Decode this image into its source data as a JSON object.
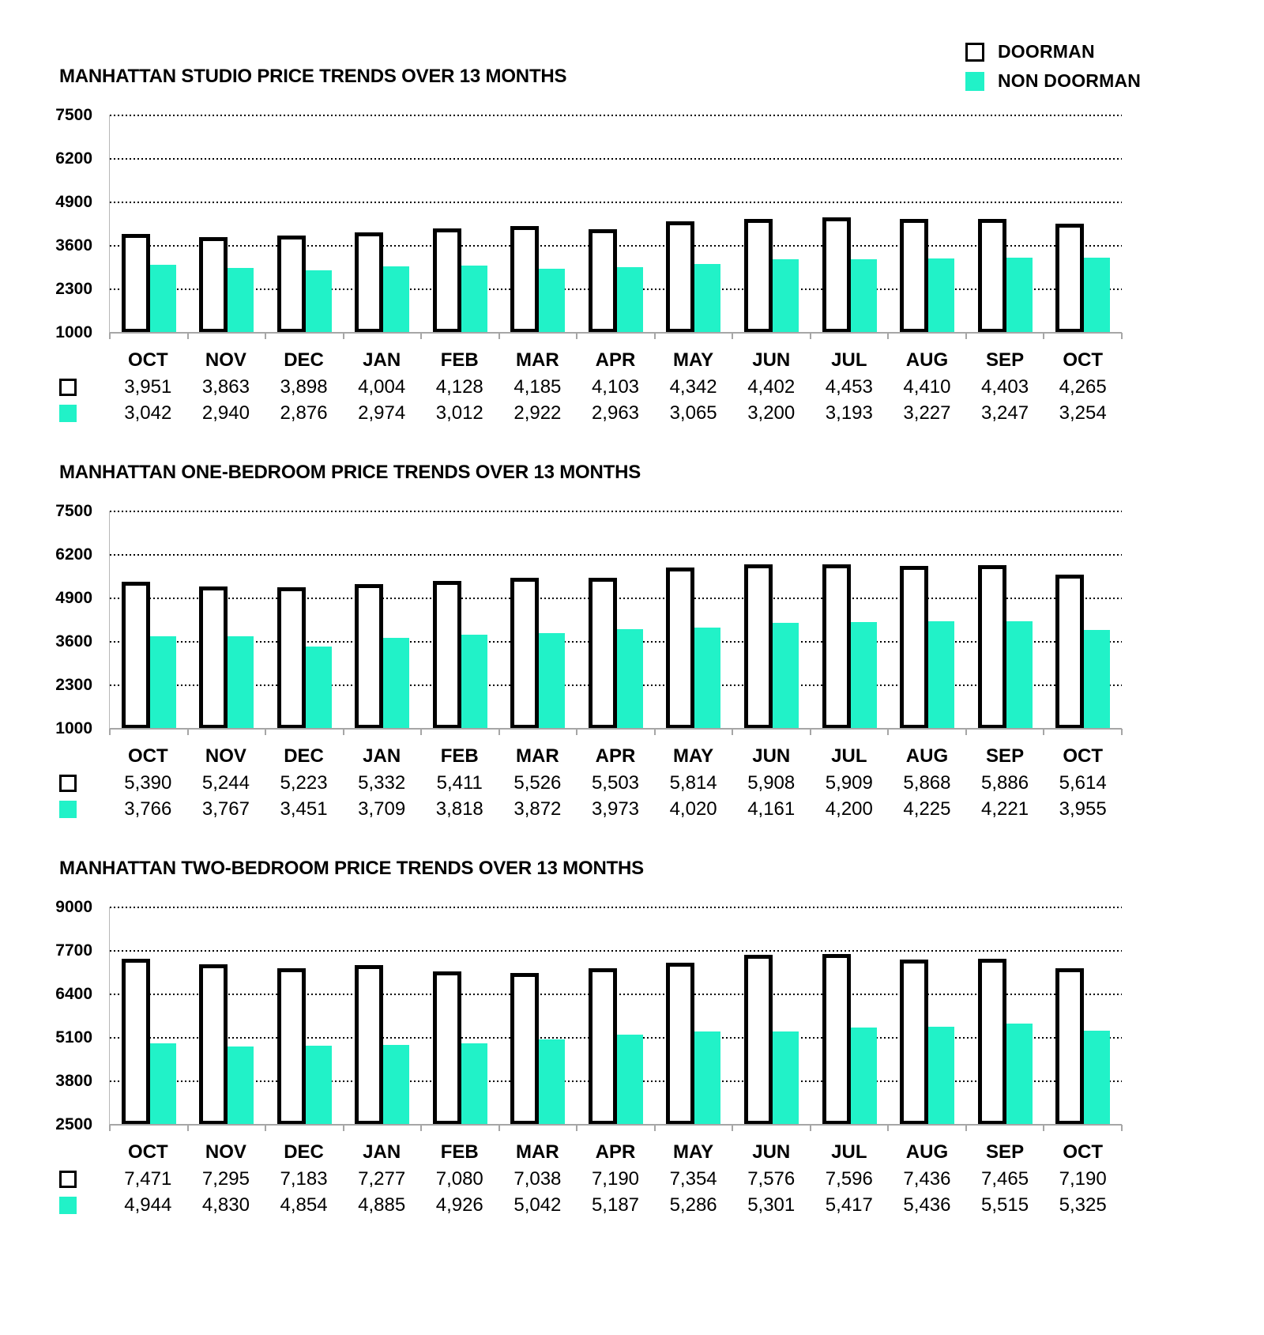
{
  "legend": {
    "items": [
      {
        "id": "doorman",
        "label": "DOORMAN"
      },
      {
        "id": "non_doorman",
        "label": "NON DOORMAN"
      }
    ],
    "position": "top-right"
  },
  "colors": {
    "doorman_fill": "#FFFFFF",
    "doorman_border": "#000000",
    "non_doorman_fill": "#21F2C8",
    "gridline": "#000000",
    "axis": "#A6A6A6"
  },
  "chart_data": [
    {
      "type": "bar",
      "title": "MANHATTAN STUDIO PRICE TRENDS OVER 13 MONTHS",
      "categories": [
        "OCT",
        "NOV",
        "DEC",
        "JAN",
        "FEB",
        "MAR",
        "APR",
        "MAY",
        "JUN",
        "JUL",
        "AUG",
        "SEP",
        "OCT"
      ],
      "y_ticks": [
        7500,
        6200,
        4900,
        3600,
        2300,
        1000
      ],
      "ylim": [
        1000,
        7500
      ],
      "grid": "dotted-horizontal",
      "series": [
        {
          "name": "DOORMAN",
          "values": [
            3951,
            3863,
            3898,
            4004,
            4128,
            4185,
            4103,
            4342,
            4402,
            4453,
            4410,
            4403,
            4265
          ]
        },
        {
          "name": "NON DOORMAN",
          "values": [
            3042,
            2940,
            2876,
            2974,
            3012,
            2922,
            2963,
            3065,
            3200,
            3193,
            3227,
            3247,
            3254
          ]
        }
      ]
    },
    {
      "type": "bar",
      "title": "MANHATTAN ONE-BEDROOM PRICE TRENDS OVER 13 MONTHS",
      "categories": [
        "OCT",
        "NOV",
        "DEC",
        "JAN",
        "FEB",
        "MAR",
        "APR",
        "MAY",
        "JUN",
        "JUL",
        "AUG",
        "SEP",
        "OCT"
      ],
      "y_ticks": [
        7500,
        6200,
        4900,
        3600,
        2300,
        1000
      ],
      "ylim": [
        1000,
        7500
      ],
      "grid": "dotted-horizontal",
      "series": [
        {
          "name": "DOORMAN",
          "values": [
            5390,
            5244,
            5223,
            5332,
            5411,
            5526,
            5503,
            5814,
            5908,
            5909,
            5868,
            5886,
            5614
          ]
        },
        {
          "name": "NON DOORMAN",
          "values": [
            3766,
            3767,
            3451,
            3709,
            3818,
            3872,
            3973,
            4020,
            4161,
            4200,
            4225,
            4221,
            3955
          ]
        }
      ]
    },
    {
      "type": "bar",
      "title": "MANHATTAN TWO-BEDROOM PRICE TRENDS OVER 13 MONTHS",
      "categories": [
        "OCT",
        "NOV",
        "DEC",
        "JAN",
        "FEB",
        "MAR",
        "APR",
        "MAY",
        "JUN",
        "JUL",
        "AUG",
        "SEP",
        "OCT"
      ],
      "y_ticks": [
        9000,
        7700,
        6400,
        5100,
        3800,
        2500
      ],
      "ylim": [
        2500,
        9000
      ],
      "grid": "dotted-horizontal",
      "series": [
        {
          "name": "DOORMAN",
          "values": [
            7471,
            7295,
            7183,
            7277,
            7080,
            7038,
            7190,
            7354,
            7576,
            7596,
            7436,
            7465,
            7190
          ]
        },
        {
          "name": "NON DOORMAN",
          "values": [
            4944,
            4830,
            4854,
            4885,
            4926,
            5042,
            5187,
            5286,
            5301,
            5417,
            5436,
            5515,
            5325
          ]
        }
      ]
    }
  ]
}
